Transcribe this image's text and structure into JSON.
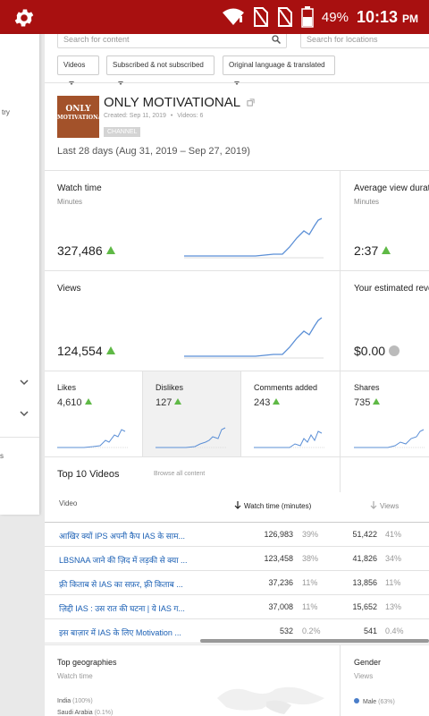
{
  "status_bar": {
    "battery": "49%",
    "time": "10:13",
    "ampm": "PM"
  },
  "sidebar": {
    "fragment_1": "try",
    "fragment_2": "s"
  },
  "search": {
    "content_placeholder": "Search for content",
    "locations_placeholder": "Search for locations"
  },
  "filters": [
    "Videos",
    "Subscribed & not subscribed",
    "Original language & translated"
  ],
  "channel": {
    "name": "ONLY MOTIVATIONAL",
    "created": "Created: Sep 11, 2019",
    "videos": "Videos: 6",
    "badge": "CHANNEL",
    "thumb_line1": "ONLY",
    "thumb_line2": "MOTIVATIONAL",
    "thumb_color": "#a3522a"
  },
  "date_range": "Last 28 days (Aug 31, 2019 – Sep 27, 2019)",
  "metrics": {
    "watch_time": {
      "title": "Watch time",
      "unit": "Minutes",
      "value": "327,486"
    },
    "avg_view_duration": {
      "title": "Average view durati",
      "unit": "Minutes",
      "value": "2:37"
    },
    "views": {
      "title": "Views",
      "value": "124,554"
    },
    "revenue": {
      "title": "Your estimated reve",
      "value": "$0.00"
    },
    "likes": {
      "title": "Likes",
      "value": "4,610"
    },
    "dislikes": {
      "title": "Dislikes",
      "value": "127"
    },
    "comments": {
      "title": "Comments added",
      "value": "243"
    },
    "shares": {
      "title": "Shares",
      "value": "735"
    }
  },
  "top_videos": {
    "title": "Top 10 Videos",
    "browse_all": "Browse all content",
    "col_video": "Video",
    "col_watch": "Watch time (minutes)",
    "col_views": "Views",
    "rows": [
      {
        "title": "आखिर क्यों IPS अपनी कैप IAS के साम...",
        "watch": "126,983",
        "watch_pct": "39%",
        "views": "51,422",
        "views_pct": "41%"
      },
      {
        "title": "LBSNAA जाने की ज़िद में लड़की से क्या ...",
        "watch": "123,458",
        "watch_pct": "38%",
        "views": "41,826",
        "views_pct": "34%"
      },
      {
        "title": "फ़्री किताब से IAS का सफ़र, फ़्री किताब ...",
        "watch": "37,236",
        "watch_pct": "11%",
        "views": "13,856",
        "views_pct": "11%"
      },
      {
        "title": "ज़िद्दी IAS : उस रात की घटना | ये IAS ग...",
        "watch": "37,008",
        "watch_pct": "11%",
        "views": "15,652",
        "views_pct": "13%"
      },
      {
        "title": "इस बाज़ार में IAS के लिए Motivation ...",
        "watch": "532",
        "watch_pct": "0.2%",
        "views": "541",
        "views_pct": "0.4%"
      }
    ]
  },
  "geographies": {
    "title": "Top geographies",
    "unit": "Watch time",
    "items": [
      {
        "name": "India",
        "pct": "(100%)"
      },
      {
        "name": "Saudi Arabia",
        "pct": "(0.1%)"
      }
    ]
  },
  "gender": {
    "title": "Gender",
    "unit": "Views",
    "items": [
      {
        "name": "Male",
        "pct": "(63%)",
        "color": "#4a7ec9"
      }
    ]
  },
  "colors": {
    "status_bar": "#a81010",
    "trend_line": "#5b8fd6",
    "up_arrow": "#5fb946",
    "link": "#1a5fb4"
  }
}
